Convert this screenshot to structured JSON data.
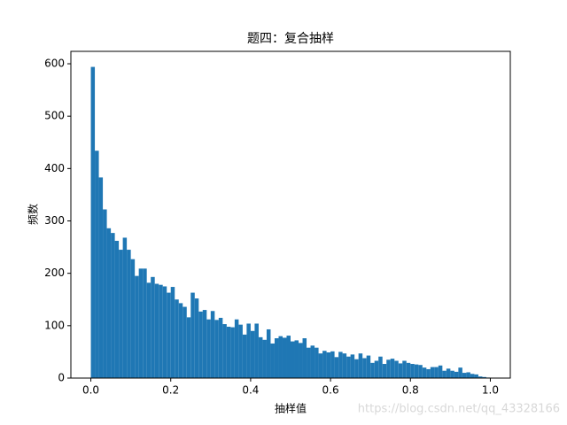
{
  "chart_data": {
    "type": "histogram",
    "title": "题四：复合抽样",
    "xlabel": "抽样值",
    "ylabel": "频数",
    "watermark": "https://blog.csdn.net/qq_43328166",
    "color": "#1f77b4",
    "bins": [
      0,
      0.01,
      0.02,
      0.03,
      0.04,
      0.05,
      0.06,
      0.07,
      0.08,
      0.09,
      0.1,
      0.11,
      0.12,
      0.13,
      0.14,
      0.15,
      0.16,
      0.17,
      0.18,
      0.19,
      0.2,
      0.21,
      0.22,
      0.23,
      0.24,
      0.25,
      0.26,
      0.27,
      0.28,
      0.29,
      0.3,
      0.31,
      0.32,
      0.33,
      0.34,
      0.35,
      0.36,
      0.37,
      0.38,
      0.39,
      0.4,
      0.41,
      0.42,
      0.43,
      0.44,
      0.45,
      0.46,
      0.47,
      0.48,
      0.49,
      0.5,
      0.51,
      0.52,
      0.53,
      0.54,
      0.55,
      0.56,
      0.57,
      0.58,
      0.59,
      0.6,
      0.61,
      0.62,
      0.63,
      0.64,
      0.65,
      0.66,
      0.67,
      0.68,
      0.69,
      0.7,
      0.71,
      0.72,
      0.73,
      0.74,
      0.75,
      0.76,
      0.77,
      0.78,
      0.79,
      0.8,
      0.81,
      0.82,
      0.83,
      0.84,
      0.85,
      0.86,
      0.87,
      0.88,
      0.89,
      0.9,
      0.91,
      0.92,
      0.93,
      0.94,
      0.95,
      0.96,
      0.97,
      0.98,
      0.99,
      1
    ],
    "values": [
      594,
      434,
      383,
      322,
      286,
      277,
      262,
      245,
      268,
      245,
      227,
      195,
      209,
      209,
      182,
      193,
      180,
      178,
      175,
      163,
      174,
      150,
      143,
      136,
      116,
      163,
      152,
      127,
      130,
      112,
      128,
      111,
      115,
      103,
      98,
      97,
      112,
      102,
      83,
      104,
      90,
      104,
      78,
      73,
      93,
      66,
      76,
      80,
      77,
      81,
      70,
      72,
      67,
      76,
      58,
      62,
      58,
      47,
      52,
      49,
      51,
      40,
      50,
      47,
      41,
      45,
      36,
      47,
      38,
      43,
      29,
      33,
      41,
      27,
      35,
      37,
      33,
      28,
      33,
      29,
      27,
      26,
      25,
      20,
      17,
      21,
      21,
      24,
      14,
      18,
      14,
      12,
      20,
      10,
      11,
      8,
      7,
      3,
      2,
      1
    ],
    "xlim": [
      -0.05,
      1.05
    ],
    "ylim": [
      0,
      623.7
    ],
    "xticks": [
      {
        "value": 0,
        "label": "0.0"
      },
      0.2,
      0.4,
      0.6,
      0.8,
      {
        "value": 1,
        "label": "1.0"
      }
    ],
    "yticks": [
      0,
      100,
      200,
      300,
      400,
      500,
      600
    ]
  }
}
